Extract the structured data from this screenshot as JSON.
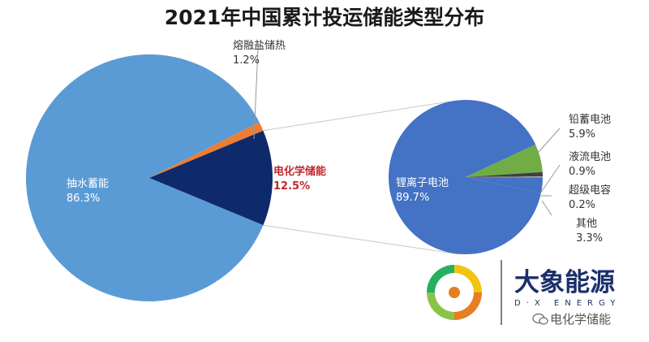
{
  "chart_data": [
    {
      "type": "pie",
      "title": "2021年中国累计投运储能类型分布",
      "slices": [
        {
          "label": "抽水蓄能",
          "value": 86.3,
          "display": "86.3%",
          "color": "#5b9bd5"
        },
        {
          "label": "熔融盐储热",
          "value": 1.2,
          "display": "1.2%",
          "color": "#ed7d31"
        },
        {
          "label": "电化学储能",
          "value": 12.5,
          "display": "12.5%",
          "color": "#0e2a6b"
        }
      ]
    },
    {
      "type": "pie",
      "title": "",
      "slices": [
        {
          "label": "锂离子电池",
          "value": 89.7,
          "display": "89.7%",
          "color": "#4472c4"
        },
        {
          "label": "铅蓄电池",
          "value": 5.9,
          "display": "5.9%",
          "color": "#70ad47"
        },
        {
          "label": "液流电池",
          "value": 0.9,
          "display": "0.9%",
          "color": "#404040"
        },
        {
          "label": "超级电容",
          "value": 0.2,
          "display": "0.2%",
          "color": "#a5a5a5"
        },
        {
          "label": "其他",
          "value": 3.3,
          "display": "3.3%",
          "color": "#4472c4"
        }
      ]
    }
  ],
  "watermark": {
    "brand": "大象能源",
    "brand_en": "D·X ENERGY",
    "account": "电化学储能"
  }
}
